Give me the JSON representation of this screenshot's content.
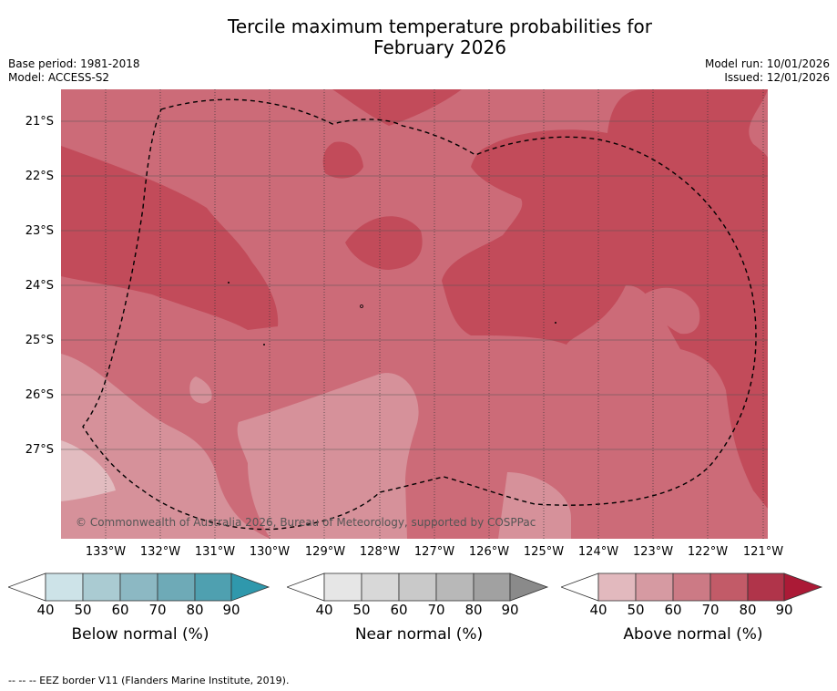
{
  "header": {
    "title_line1": "Tercile maximum temperature probabilities for",
    "title_line2": "February 2026",
    "base_period": "Base period: 1981-2018",
    "model": "Model: ACCESS-S2",
    "model_run": "Model run: 10/01/2026",
    "issued": "Issued: 12/01/2026"
  },
  "map": {
    "copyright": "© Commonwealth of Australia 2026, Bureau of Meteorology, supported by COSPPac",
    "lat_labels": [
      "21°S",
      "22°S",
      "23°S",
      "24°S",
      "25°S",
      "26°S",
      "27°S"
    ],
    "lon_labels": [
      "133°W",
      "132°W",
      "131°W",
      "130°W",
      "129°W",
      "128°W",
      "127°W",
      "126°W",
      "125°W",
      "124°W",
      "123°W",
      "122°W",
      "121°W"
    ],
    "colors": {
      "above_60": "#cc6b78",
      "above_70": "#c24b5a",
      "above_50": "#d6919a",
      "above_40": "#e2bcc0"
    }
  },
  "colorbars": {
    "below": {
      "label": "Below normal (%)",
      "ticks": [
        "40",
        "50",
        "60",
        "70",
        "80",
        "90"
      ],
      "colors": [
        "#ffffff",
        "#cde3e8",
        "#aacbd2",
        "#8cb8c3",
        "#6eaab7",
        "#4fa0b0",
        "#2f98ac"
      ]
    },
    "near": {
      "label": "Near normal (%)",
      "ticks": [
        "40",
        "50",
        "60",
        "70",
        "80",
        "90"
      ],
      "colors": [
        "#ffffff",
        "#e6e6e6",
        "#d8d8d8",
        "#c9c9c9",
        "#b8b8b8",
        "#a1a1a1",
        "#8a8a8a"
      ]
    },
    "above": {
      "label": "Above normal (%)",
      "ticks": [
        "40",
        "50",
        "60",
        "70",
        "80",
        "90"
      ],
      "colors": [
        "#ffffff",
        "#e2b9be",
        "#d69aa2",
        "#cc7a85",
        "#c25b68",
        "#b0344a",
        "#ab1a36"
      ]
    }
  },
  "footer": {
    "eez_legend": "--  --  -- EEZ border V11 (Flanders Marine Institute, 2019)."
  }
}
